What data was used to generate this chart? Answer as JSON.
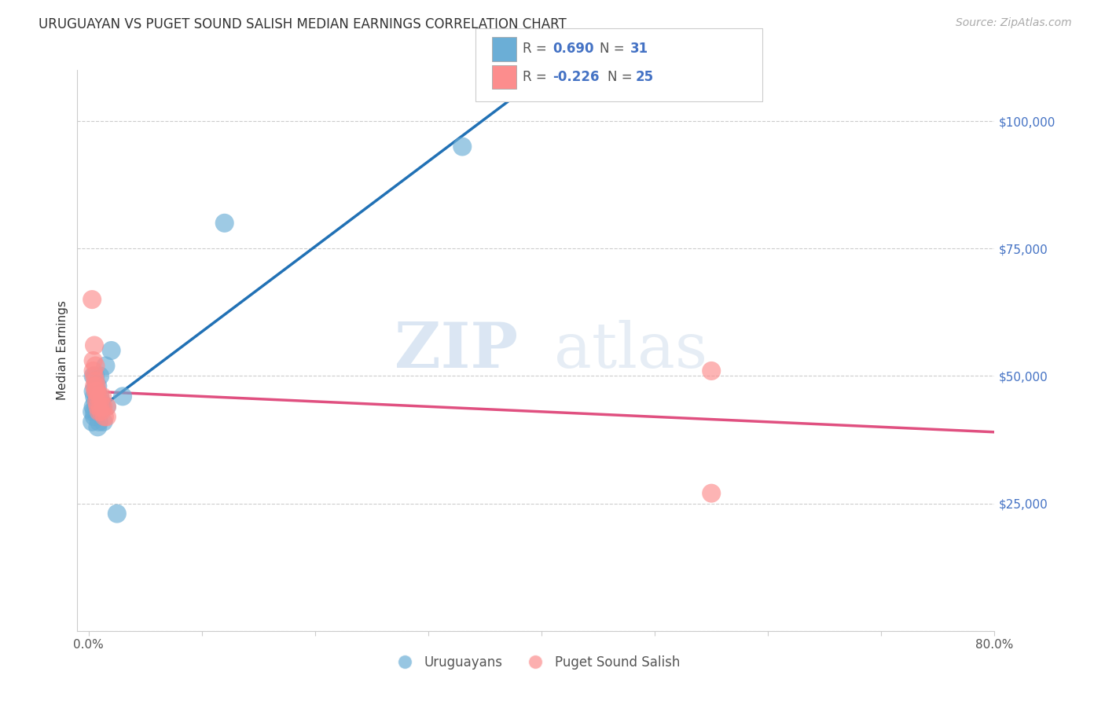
{
  "title": "URUGUAYAN VS PUGET SOUND SALISH MEDIAN EARNINGS CORRELATION CHART",
  "source": "Source: ZipAtlas.com",
  "ylabel": "Median Earnings",
  "xlim": [
    0.0,
    0.8
  ],
  "ylim": [
    0,
    110000
  ],
  "xticks": [
    0.0,
    0.1,
    0.2,
    0.3,
    0.4,
    0.5,
    0.6,
    0.7,
    0.8
  ],
  "yticks": [
    0,
    25000,
    50000,
    75000,
    100000
  ],
  "ytick_labels": [
    "",
    "$25,000",
    "$50,000",
    "$75,000",
    "$100,000"
  ],
  "blue_R": 0.69,
  "blue_N": 31,
  "pink_R": -0.226,
  "pink_N": 25,
  "legend_label_blue": "Uruguayans",
  "legend_label_pink": "Puget Sound Salish",
  "watermark": "ZIPatlas",
  "blue_color": "#6baed6",
  "pink_color": "#fc8d8d",
  "blue_line_color": "#2171b5",
  "pink_line_color": "#e05080",
  "blue_scatter": [
    [
      0.003,
      43000
    ],
    [
      0.003,
      41000
    ],
    [
      0.004,
      50000
    ],
    [
      0.004,
      47000
    ],
    [
      0.004,
      44000
    ],
    [
      0.005,
      46000
    ],
    [
      0.005,
      42000
    ],
    [
      0.005,
      43000
    ],
    [
      0.006,
      50000
    ],
    [
      0.006,
      48000
    ],
    [
      0.006,
      45000
    ],
    [
      0.007,
      47000
    ],
    [
      0.007,
      44000
    ],
    [
      0.007,
      46000
    ],
    [
      0.008,
      48000
    ],
    [
      0.008,
      43000
    ],
    [
      0.008,
      40000
    ],
    [
      0.009,
      44000
    ],
    [
      0.009,
      41000
    ],
    [
      0.01,
      50000
    ],
    [
      0.01,
      46000
    ],
    [
      0.011,
      45000
    ],
    [
      0.012,
      44000
    ],
    [
      0.013,
      41000
    ],
    [
      0.015,
      52000
    ],
    [
      0.016,
      44000
    ],
    [
      0.02,
      55000
    ],
    [
      0.025,
      23000
    ],
    [
      0.03,
      46000
    ],
    [
      0.12,
      80000
    ],
    [
      0.33,
      95000
    ]
  ],
  "pink_scatter": [
    [
      0.003,
      65000
    ],
    [
      0.004,
      53000
    ],
    [
      0.004,
      51000
    ],
    [
      0.005,
      56000
    ],
    [
      0.005,
      50000
    ],
    [
      0.005,
      48000
    ],
    [
      0.006,
      52000
    ],
    [
      0.006,
      47000
    ],
    [
      0.006,
      49000
    ],
    [
      0.007,
      48000
    ],
    [
      0.007,
      45000
    ],
    [
      0.007,
      47000
    ],
    [
      0.008,
      46000
    ],
    [
      0.008,
      44000
    ],
    [
      0.009,
      43000
    ],
    [
      0.01,
      44000
    ],
    [
      0.01,
      46000
    ],
    [
      0.011,
      43000
    ],
    [
      0.012,
      46000
    ],
    [
      0.013,
      44000
    ],
    [
      0.014,
      42000
    ],
    [
      0.016,
      44000
    ],
    [
      0.016,
      42000
    ],
    [
      0.55,
      51000
    ],
    [
      0.55,
      27000
    ]
  ],
  "background_color": "#ffffff",
  "grid_color": "#cccccc"
}
